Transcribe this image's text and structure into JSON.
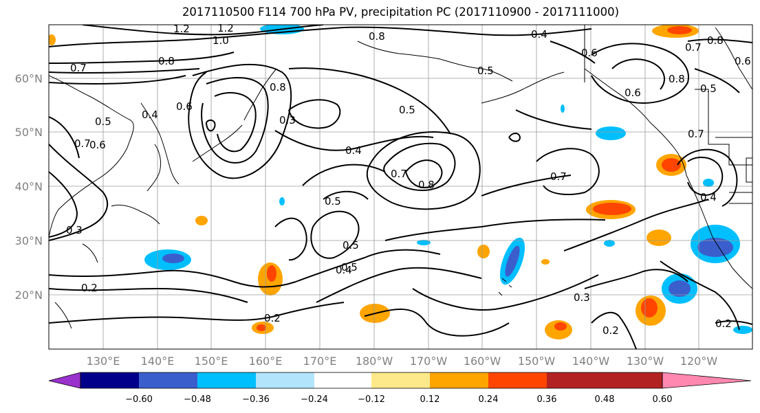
{
  "title": "2017110500 F114 700 hPa PV, precipitation PC (2017110900 - 2017111000)",
  "latitude_labels": [
    "60°N",
    "50°N",
    "40°N",
    "30°N",
    "20°N"
  ],
  "longitude_labels": [
    "130°E",
    "140°E",
    "150°E",
    "160°E",
    "170°E",
    "180°W",
    "170°W",
    "160°W",
    "150°W",
    "140°W",
    "130°W",
    "120°W"
  ],
  "contour_labels": [
    "1.2",
    "1.2",
    "1.0",
    "0.8",
    "0.8",
    "0.7",
    "0.4",
    "0.6",
    "0.4",
    "0.5",
    "0.6",
    "0.7",
    "0.6",
    "0.5",
    "0.3",
    "0.8",
    "0.3",
    "0.5",
    "0.4",
    "0.7",
    "0.8",
    "0.5",
    "0.5",
    "0.4",
    "0.7",
    "0.7",
    "0.2",
    "0.2",
    "0.3",
    "0.2",
    "0.2",
    "0.4",
    "0.6",
    "0.5",
    "0.7",
    "0.8",
    "0.8",
    "0.5",
    "0.6"
  ],
  "colorbar": {
    "colors": [
      "#9932cc",
      "#00008b",
      "#3a5fcd",
      "#00bfff",
      "#b2e4fb",
      "#ffffff",
      "#fde98a",
      "#ffa500",
      "#ff4500",
      "#b22222",
      "#ff88b0"
    ],
    "tick_labels": [
      "−0.60",
      "−0.48",
      "−0.36",
      "−0.24",
      "−0.12",
      "0.12",
      "0.24",
      "0.36",
      "0.48",
      "0.60"
    ]
  }
}
